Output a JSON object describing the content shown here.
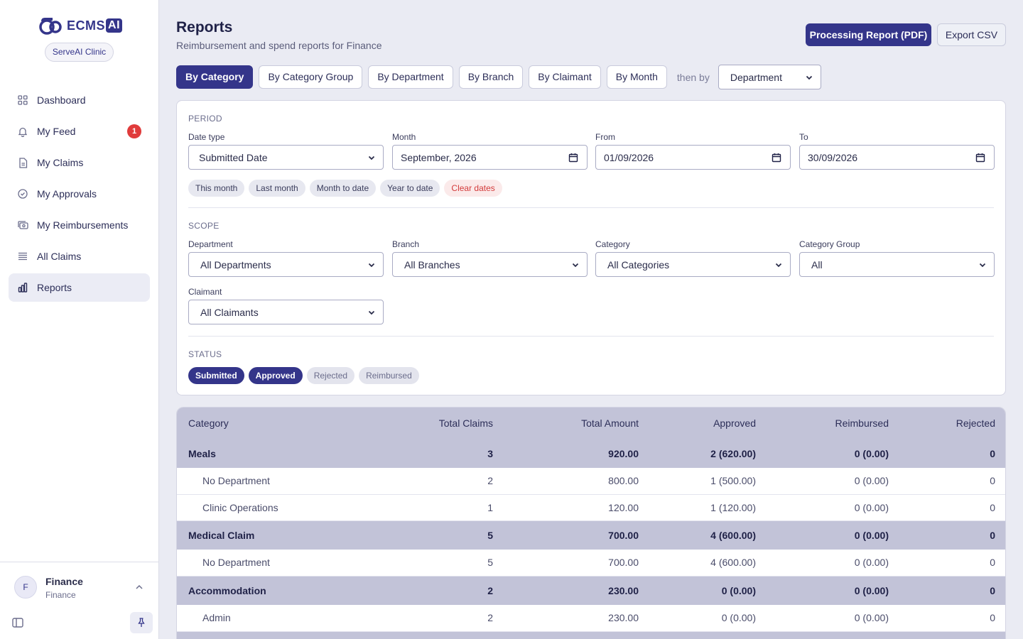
{
  "app": {
    "logo_text": "ECMS",
    "logo_ai": "AI",
    "org": "ServeAI Clinic"
  },
  "sidebar": {
    "items": [
      {
        "label": "Dashboard",
        "icon": "grid-icon"
      },
      {
        "label": "My Feed",
        "icon": "bell-icon",
        "badge": "1"
      },
      {
        "label": "My Claims",
        "icon": "document-icon"
      },
      {
        "label": "My Approvals",
        "icon": "check-circle-icon"
      },
      {
        "label": "My Reimbursements",
        "icon": "cash-icon"
      },
      {
        "label": "All Claims",
        "icon": "list-icon"
      },
      {
        "label": "Reports",
        "icon": "bar-chart-icon",
        "active": true
      }
    ],
    "user": {
      "initial": "F",
      "name": "Finance",
      "role": "Finance"
    }
  },
  "header": {
    "title": "Reports",
    "subtitle": "Reimbursement and spend reports for Finance",
    "pdf_button": "Processing Report (PDF)",
    "csv_button": "Export CSV"
  },
  "tabs": {
    "items": [
      "By Category",
      "By Category Group",
      "By Department",
      "By Branch",
      "By Claimant",
      "By Month"
    ],
    "active": "By Category",
    "then_by_label": "then by",
    "then_by_value": "Department"
  },
  "period": {
    "title": "PERIOD",
    "date_type_label": "Date type",
    "date_type_value": "Submitted Date",
    "month_label": "Month",
    "month_value": "September, 2026",
    "from_label": "From",
    "from_value": "01/09/2026",
    "to_label": "To",
    "to_value": "30/09/2026",
    "quick": [
      "This month",
      "Last month",
      "Month to date",
      "Year to date"
    ],
    "clear": "Clear dates"
  },
  "scope": {
    "title": "SCOPE",
    "department_label": "Department",
    "department_value": "All Departments",
    "branch_label": "Branch",
    "branch_value": "All Branches",
    "category_label": "Category",
    "category_value": "All Categories",
    "group_label": "Category Group",
    "group_value": "All",
    "claimant_label": "Claimant",
    "claimant_value": "All Claimants"
  },
  "status": {
    "title": "STATUS",
    "chips": [
      {
        "label": "Submitted",
        "on": true
      },
      {
        "label": "Approved",
        "on": true
      },
      {
        "label": "Rejected",
        "on": false
      },
      {
        "label": "Reimbursed",
        "on": false
      }
    ]
  },
  "table": {
    "headers": [
      "Category",
      "Total Claims",
      "Total Amount",
      "Approved",
      "Reimbursed",
      "Rejected"
    ],
    "rows": [
      {
        "type": "group",
        "cells": [
          "Meals",
          "3",
          "920.00",
          "2 (620.00)",
          "0 (0.00)",
          "0"
        ]
      },
      {
        "type": "sub",
        "cells": [
          "No Department",
          "2",
          "800.00",
          "1 (500.00)",
          "0 (0.00)",
          "0"
        ]
      },
      {
        "type": "sub",
        "cells": [
          "Clinic Operations",
          "1",
          "120.00",
          "1 (120.00)",
          "0 (0.00)",
          "0"
        ]
      },
      {
        "type": "group",
        "cells": [
          "Medical Claim",
          "5",
          "700.00",
          "4 (600.00)",
          "0 (0.00)",
          "0"
        ]
      },
      {
        "type": "sub",
        "cells": [
          "No Department",
          "5",
          "700.00",
          "4 (600.00)",
          "0 (0.00)",
          "0"
        ]
      },
      {
        "type": "group",
        "cells": [
          "Accommodation",
          "2",
          "230.00",
          "0 (0.00)",
          "0 (0.00)",
          "0"
        ]
      },
      {
        "type": "sub",
        "cells": [
          "Admin",
          "2",
          "230.00",
          "0 (0.00)",
          "0 (0.00)",
          "0"
        ]
      },
      {
        "type": "group",
        "cells": [
          "",
          "",
          "",
          "",
          "",
          ""
        ]
      }
    ]
  }
}
